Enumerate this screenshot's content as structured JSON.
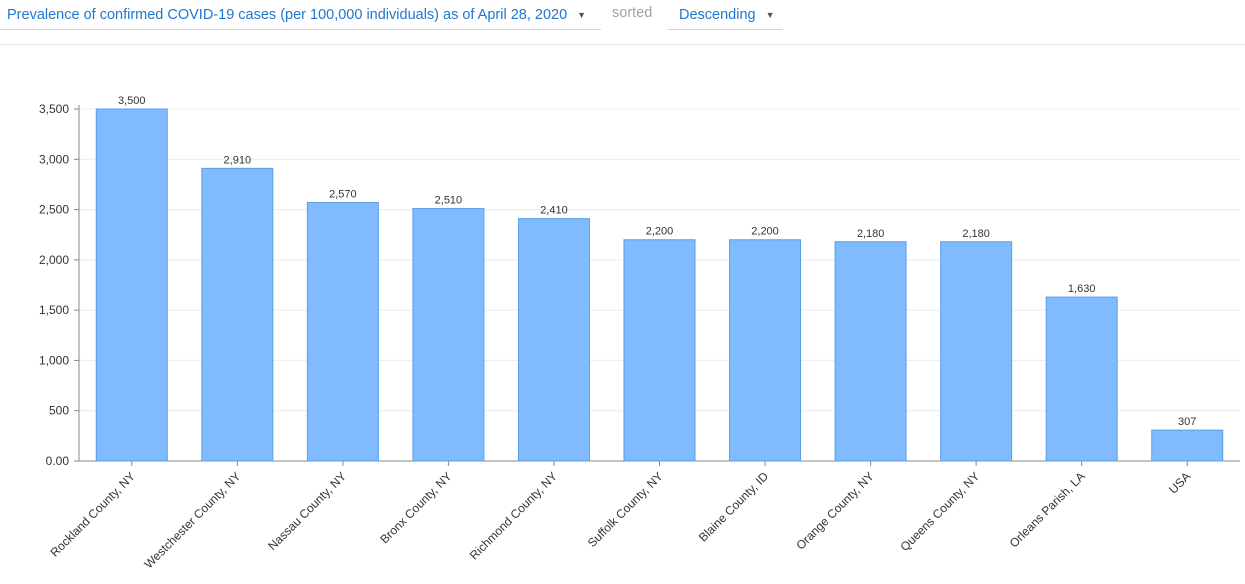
{
  "header": {
    "metric_select": "Prevalence of confirmed COVID-19 cases (per 100,000 individuals) as of April 28, 2020",
    "sorted_text": "sorted",
    "order_select": "Descending"
  },
  "colors": {
    "bar": "#80bbff",
    "bar_stroke": "#5a9ee8",
    "accent": "#1f77d0"
  },
  "chart_data": {
    "type": "bar",
    "categories": [
      "Rockland County, NY",
      "Westchester County, NY",
      "Nassau County, NY",
      "Bronx County, NY",
      "Richmond County, NY",
      "Suffolk County, NY",
      "Blaine County, ID",
      "Orange County, NY",
      "Queens County, NY",
      "Orleans Parish, LA",
      "USA"
    ],
    "values": [
      3500,
      2910,
      2570,
      2510,
      2410,
      2200,
      2200,
      2180,
      2180,
      1630,
      307
    ],
    "data_labels": [
      "3,500",
      "2,910",
      "2,570",
      "2,510",
      "2,410",
      "2,200",
      "2,200",
      "2,180",
      "2,180",
      "1,630",
      "307"
    ],
    "y_ticks": [
      0,
      500,
      1000,
      1500,
      2000,
      2500,
      3000,
      3500
    ],
    "y_tick_labels": [
      "0.00",
      "500",
      "1,000",
      "1,500",
      "2,000",
      "2,500",
      "3,000",
      "3,500"
    ],
    "ylim": [
      0,
      3500
    ],
    "grid": true,
    "title": "",
    "xlabel": "",
    "ylabel": ""
  }
}
